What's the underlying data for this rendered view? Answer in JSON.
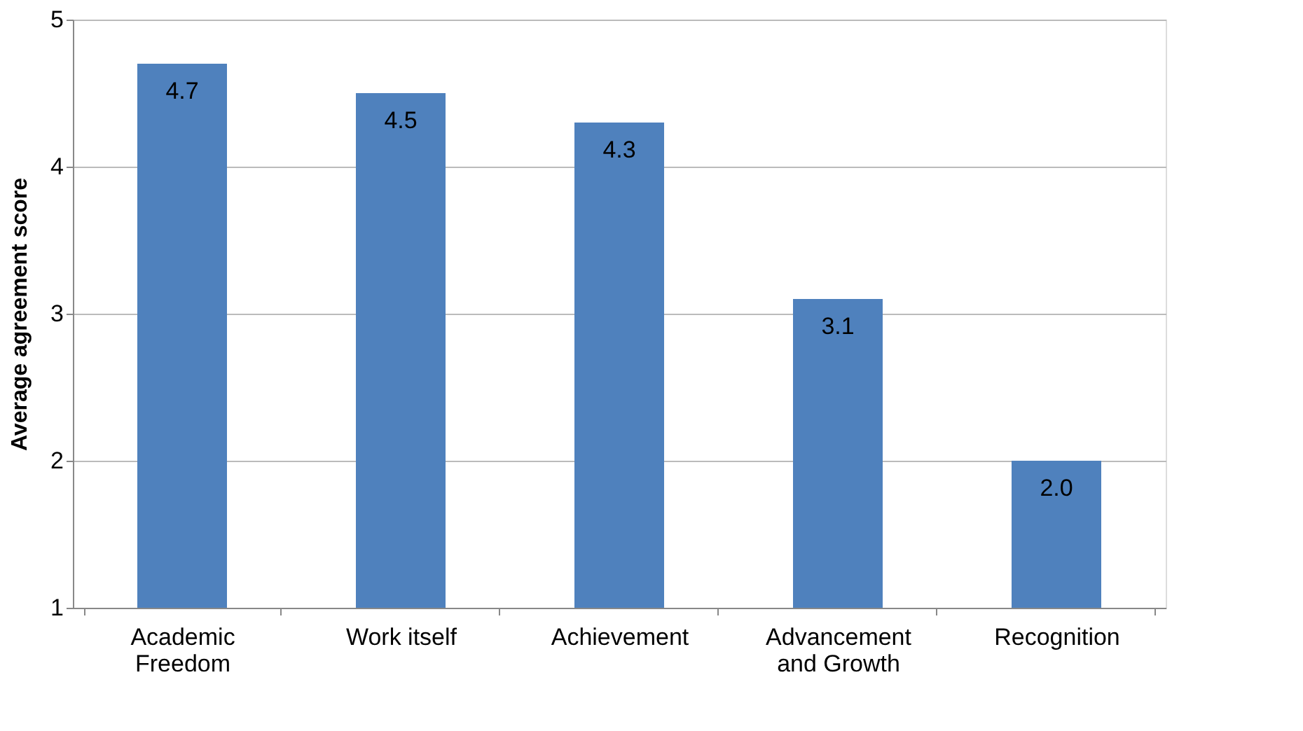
{
  "chart_data": {
    "type": "bar",
    "ylabel": "Average agreement score",
    "categories": [
      "Academic Freedom",
      "Work itself",
      "Achievement",
      "Advancement and Growth",
      "Recognition"
    ],
    "values": [
      4.7,
      4.5,
      4.3,
      3.1,
      2.0
    ],
    "value_labels": [
      "4.7",
      "4.5",
      "4.3",
      "3.1",
      "2.0"
    ],
    "color": "#4f81bd",
    "ylim": [
      1,
      5
    ],
    "yticks": [
      1,
      2,
      3,
      4,
      5
    ],
    "grid": "y"
  }
}
